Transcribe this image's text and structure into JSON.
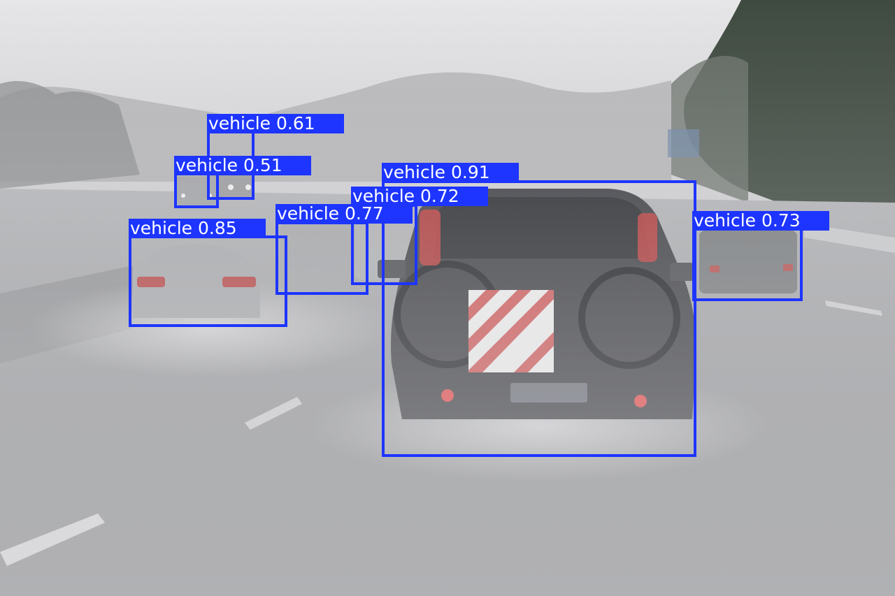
{
  "image": {
    "description_role": "natural photo of a rainy motorway with object-detection overlay",
    "box_color": "#1d35ff",
    "label_text_color": "#ffffff"
  },
  "detections": [
    {
      "label": "vehicle",
      "score": "0.61",
      "text": "vehicle 0.61"
    },
    {
      "label": "vehicle",
      "score": "0.51",
      "text": "vehicle 0.51"
    },
    {
      "label": "vehicle",
      "score": "0.85",
      "text": "vehicle 0.85"
    },
    {
      "label": "vehicle",
      "score": "0.77",
      "text": "vehicle 0.77"
    },
    {
      "label": "vehicle",
      "score": "0.72",
      "text": "vehicle 0.72"
    },
    {
      "label": "vehicle",
      "score": "0.91",
      "text": "vehicle 0.91"
    },
    {
      "label": "vehicle",
      "score": "0.73",
      "text": "vehicle 0.73"
    }
  ]
}
